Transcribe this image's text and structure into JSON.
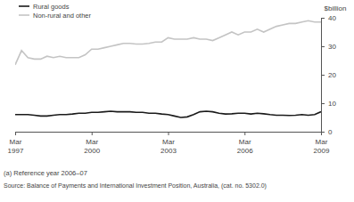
{
  "chart_data": {
    "type": "line",
    "y_label": "$billion",
    "footnote": "(a) Reference year 2006–07",
    "source": "Source: Balance of Payments and International Investment Position, Australia, (cat. no. 5302.0)",
    "categories": [
      "Mar 1997",
      null,
      null,
      null,
      null,
      null,
      null,
      null,
      null,
      null,
      null,
      null,
      "Mar 2000",
      null,
      null,
      null,
      null,
      null,
      null,
      null,
      null,
      null,
      null,
      null,
      "Mar 2003",
      null,
      null,
      null,
      null,
      null,
      null,
      null,
      null,
      null,
      null,
      null,
      "Mar 2006",
      null,
      null,
      null,
      null,
      null,
      null,
      null,
      null,
      null,
      null,
      null,
      "Mar 2009"
    ],
    "series": [
      {
        "name": "Rural goods",
        "color": "#1a1a1a",
        "values": [
          6,
          6,
          6,
          5.8,
          5.5,
          5.5,
          5.8,
          6,
          6,
          6.2,
          6.5,
          6.5,
          6.8,
          6.8,
          7,
          7.2,
          7,
          7,
          7,
          6.8,
          6.8,
          6.5,
          6.5,
          6.2,
          6,
          5.5,
          5,
          5.2,
          6,
          7,
          7.2,
          7,
          6.5,
          6.2,
          6.3,
          6.5,
          6.5,
          6.2,
          6.5,
          6.3,
          6,
          5.8,
          5.8,
          5.7,
          5.8,
          6,
          5.8,
          6,
          7
        ]
      },
      {
        "name": "Non-rural and other",
        "color": "#c4c4c4",
        "values": [
          23.5,
          28.5,
          26,
          25.5,
          25.5,
          26.5,
          26,
          26.5,
          26,
          26,
          26,
          27,
          29,
          29,
          29.5,
          30,
          30.5,
          31,
          31,
          30.8,
          30.8,
          31,
          31.5,
          31.5,
          33,
          32.5,
          32.5,
          32.5,
          33,
          32.5,
          32.5,
          32,
          33,
          34,
          35,
          34,
          35,
          35,
          36,
          35,
          36,
          37,
          37.5,
          38,
          38,
          38.5,
          39,
          38.5,
          38.5
        ]
      }
    ],
    "ylim": [
      0,
      40
    ],
    "yticks": [
      0,
      10,
      20,
      30,
      40
    ],
    "legend": "upper left",
    "grid": false
  }
}
